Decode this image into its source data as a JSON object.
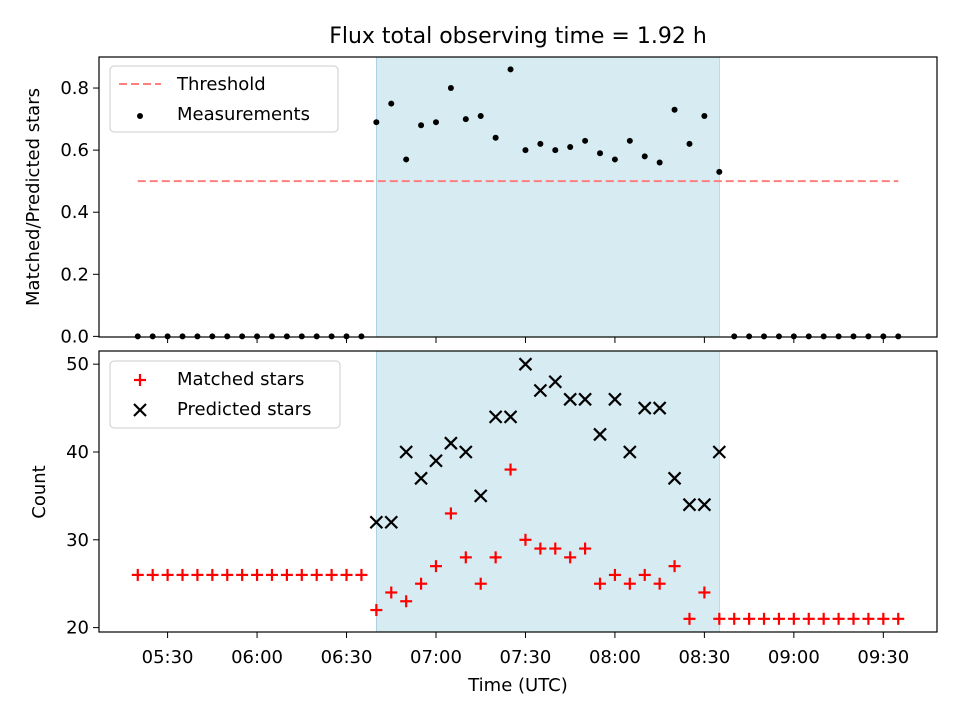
{
  "figure": {
    "title": "Flux total observing time = 1.92 h",
    "xlabel": "Time (UTC)",
    "x_ticks": [
      "05:30",
      "06:00",
      "06:30",
      "07:00",
      "07:30",
      "08:00",
      "08:30",
      "09:00",
      "09:30"
    ],
    "shaded_band": {
      "start": "06:40",
      "end": "08:35",
      "color": "#add8e6"
    }
  },
  "chart_data": [
    {
      "type": "scatter",
      "panel": "top",
      "ylabel": "Matched/Predicted stars",
      "ylim": [
        0,
        0.9
      ],
      "y_ticks": [
        "0.0",
        "0.2",
        "0.4",
        "0.6",
        "0.8"
      ],
      "legend_location": "top-left",
      "threshold": {
        "name": "Threshold",
        "value": 0.5,
        "x_range": [
          "05:20",
          "09:35"
        ],
        "color": "#ff7f7f",
        "style": "dashed"
      },
      "series": [
        {
          "name": "Measurements",
          "color": "#000000",
          "marker": "dot",
          "x": [
            "05:20",
            "05:25",
            "05:30",
            "05:35",
            "05:40",
            "05:45",
            "05:50",
            "05:55",
            "06:00",
            "06:05",
            "06:10",
            "06:15",
            "06:20",
            "06:25",
            "06:30",
            "06:35",
            "06:40",
            "06:45",
            "06:50",
            "06:55",
            "07:00",
            "07:05",
            "07:10",
            "07:15",
            "07:20",
            "07:25",
            "07:30",
            "07:35",
            "07:40",
            "07:45",
            "07:50",
            "07:55",
            "08:00",
            "08:05",
            "08:10",
            "08:15",
            "08:20",
            "08:25",
            "08:30",
            "08:35",
            "08:40",
            "08:45",
            "08:50",
            "08:55",
            "09:00",
            "09:05",
            "09:10",
            "09:15",
            "09:20",
            "09:25",
            "09:30",
            "09:35"
          ],
          "y": [
            0,
            0,
            0,
            0,
            0,
            0,
            0,
            0,
            0,
            0,
            0,
            0,
            0,
            0,
            0,
            0,
            0.69,
            0.75,
            0.57,
            0.68,
            0.69,
            0.8,
            0.7,
            0.71,
            0.64,
            0.86,
            0.6,
            0.62,
            0.6,
            0.61,
            0.63,
            0.59,
            0.57,
            0.63,
            0.58,
            0.56,
            0.73,
            0.62,
            0.71,
            0.53,
            0,
            0,
            0,
            0,
            0,
            0,
            0,
            0,
            0,
            0,
            0,
            0
          ]
        }
      ]
    },
    {
      "type": "scatter",
      "panel": "bottom",
      "ylabel": "Count",
      "ylim": [
        19.5,
        51.5
      ],
      "y_ticks": [
        "20",
        "30",
        "40",
        "50"
      ],
      "legend_location": "top-left",
      "series": [
        {
          "name": "Matched stars",
          "color": "#ff0000",
          "marker": "plus",
          "x": [
            "05:20",
            "05:25",
            "05:30",
            "05:35",
            "05:40",
            "05:45",
            "05:50",
            "05:55",
            "06:00",
            "06:05",
            "06:10",
            "06:15",
            "06:20",
            "06:25",
            "06:30",
            "06:35",
            "06:40",
            "06:45",
            "06:50",
            "06:55",
            "07:00",
            "07:05",
            "07:10",
            "07:15",
            "07:20",
            "07:25",
            "07:30",
            "07:35",
            "07:40",
            "07:45",
            "07:50",
            "07:55",
            "08:00",
            "08:05",
            "08:10",
            "08:15",
            "08:20",
            "08:25",
            "08:30",
            "08:35",
            "08:40",
            "08:45",
            "08:50",
            "08:55",
            "09:00",
            "09:05",
            "09:10",
            "09:15",
            "09:20",
            "09:25",
            "09:30",
            "09:35"
          ],
          "y": [
            26,
            26,
            26,
            26,
            26,
            26,
            26,
            26,
            26,
            26,
            26,
            26,
            26,
            26,
            26,
            26,
            22,
            24,
            23,
            25,
            27,
            33,
            28,
            25,
            28,
            38,
            30,
            29,
            29,
            28,
            29,
            25,
            26,
            25,
            26,
            25,
            27,
            21,
            24,
            21,
            21,
            21,
            21,
            21,
            21,
            21,
            21,
            21,
            21,
            21,
            21,
            21
          ]
        },
        {
          "name": "Predicted stars",
          "color": "#000000",
          "marker": "x",
          "x": [
            "06:40",
            "06:45",
            "06:50",
            "06:55",
            "07:00",
            "07:05",
            "07:10",
            "07:15",
            "07:20",
            "07:25",
            "07:30",
            "07:35",
            "07:40",
            "07:45",
            "07:50",
            "07:55",
            "08:00",
            "08:05",
            "08:10",
            "08:15",
            "08:20",
            "08:25",
            "08:30",
            "08:35"
          ],
          "y": [
            32,
            32,
            40,
            37,
            39,
            41,
            40,
            35,
            44,
            44,
            50,
            47,
            48,
            46,
            46,
            42,
            46,
            40,
            45,
            45,
            37,
            34,
            34,
            40
          ]
        }
      ]
    }
  ]
}
